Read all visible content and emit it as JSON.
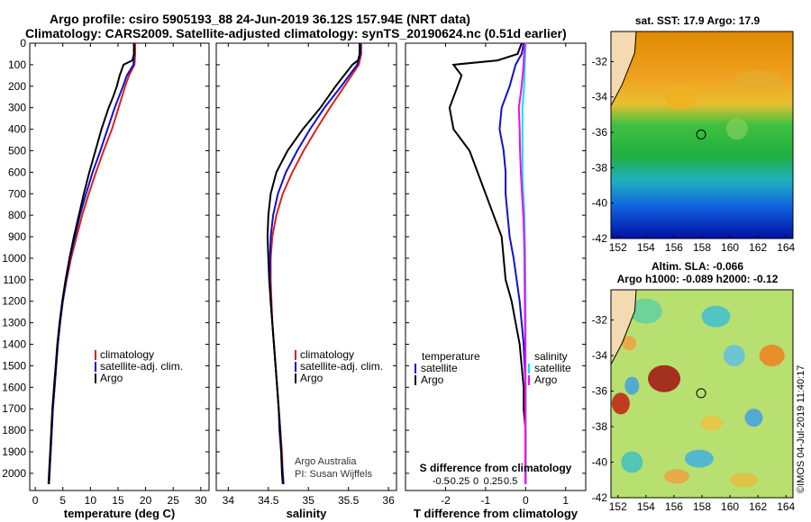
{
  "title": {
    "line1": "Argo profile: csiro 5905193_88 24-Jun-2019 36.12S 157.94E (NRT data)",
    "line2": "Climatology: CARS2009. Satellite-adjusted climatology: synTS_20190624.nc (0.51d earlier)"
  },
  "colors": {
    "climatology": "#e0201a",
    "satellite": "#1010d0",
    "argo": "#000000",
    "sat_salinity": "#00e5e5",
    "argo_salinity": "#ff00ff"
  },
  "chart_data": [
    {
      "id": "temperature",
      "type": "line",
      "xlabel": "temperature (deg C)",
      "ylabel": "",
      "xlim": [
        -1,
        31.5
      ],
      "ylim": [
        2080,
        0
      ],
      "xticks": [
        0,
        5,
        10,
        15,
        20,
        25,
        30
      ],
      "xtick_labels": [
        "0",
        "5",
        "10",
        "15",
        "20",
        "25",
        "30"
      ],
      "yticks": [
        0,
        100,
        200,
        300,
        400,
        500,
        600,
        700,
        800,
        900,
        1000,
        1100,
        1200,
        1300,
        1400,
        1500,
        1600,
        1700,
        1800,
        1900,
        2000
      ],
      "ytick_labels": [
        "0",
        "100",
        "200",
        "300",
        "400",
        "500",
        "600",
        "700",
        "800",
        "900",
        "1000",
        "1100",
        "1200",
        "1300",
        "1400",
        "1500",
        "1600",
        "1700",
        "1800",
        "1900",
        "2000"
      ],
      "legend": [
        {
          "label": "climatology",
          "color": "#e0201a"
        },
        {
          "label": "satellite-adj. clim.",
          "color": "#1010d0"
        },
        {
          "label": "Argo",
          "color": "#000000"
        }
      ],
      "series": [
        {
          "name": "climatology",
          "color": "#e0201a",
          "depth": [
            0,
            50,
            100,
            150,
            200,
            300,
            400,
            500,
            600,
            700,
            800,
            900,
            1000,
            1100,
            1200,
            1300,
            1400,
            1500,
            1600,
            1700,
            1800,
            1900,
            2000,
            2050
          ],
          "values": [
            18.1,
            18.1,
            18.0,
            17.0,
            16.3,
            15.1,
            13.9,
            12.4,
            11.0,
            9.7,
            8.5,
            7.5,
            6.5,
            5.7,
            5.0,
            4.5,
            4.1,
            3.8,
            3.5,
            3.2,
            3.0,
            2.8,
            2.6,
            2.5
          ]
        },
        {
          "name": "satellite-adj. clim.",
          "color": "#1010d0",
          "depth": [
            0,
            50,
            100,
            150,
            200,
            300,
            400,
            500,
            600,
            700,
            800,
            900,
            1000,
            1100,
            1200,
            1300,
            1400,
            1500,
            1600,
            1700,
            1800,
            1900,
            2000,
            2050
          ],
          "values": [
            17.9,
            17.9,
            17.8,
            16.6,
            15.9,
            14.4,
            13.1,
            11.8,
            10.4,
            9.2,
            8.1,
            7.2,
            6.3,
            5.6,
            5.0,
            4.5,
            4.1,
            3.8,
            3.5,
            3.2,
            3.0,
            2.8,
            2.6,
            2.5
          ]
        },
        {
          "name": "Argo",
          "color": "#000000",
          "depth": [
            0,
            50,
            80,
            100,
            150,
            200,
            250,
            300,
            400,
            500,
            600,
            700,
            800,
            900,
            1000,
            1100,
            1200,
            1300,
            1400,
            1500,
            1600,
            1700,
            1800,
            1900,
            2000,
            2050
          ],
          "values": [
            17.9,
            17.9,
            17.6,
            16.0,
            15.3,
            14.8,
            14.1,
            13.3,
            12.0,
            10.9,
            9.8,
            8.8,
            7.9,
            7.0,
            6.2,
            5.5,
            4.9,
            4.4,
            4.0,
            3.7,
            3.4,
            3.1,
            2.9,
            2.7,
            2.5,
            2.4
          ]
        }
      ]
    },
    {
      "id": "salinity",
      "type": "line",
      "xlabel": "salinity",
      "ylabel": "",
      "xlim": [
        33.85,
        36.1
      ],
      "ylim": [
        2080,
        0
      ],
      "xticks": [
        34,
        34.5,
        35,
        35.5,
        36
      ],
      "xtick_labels": [
        "34",
        "34.5",
        "35",
        "35.5",
        "36"
      ],
      "legend": [
        {
          "label": "climatology",
          "color": "#e0201a"
        },
        {
          "label": "satellite-adj. clim.",
          "color": "#1010d0"
        },
        {
          "label": "Argo",
          "color": "#000000"
        }
      ],
      "credit": [
        "Argo Australia",
        "PI: Susan Wijffels"
      ],
      "series": [
        {
          "name": "climatology",
          "color": "#e0201a",
          "depth": [
            0,
            50,
            100,
            200,
            300,
            400,
            500,
            600,
            700,
            800,
            900,
            1000,
            1100,
            1200,
            1300,
            1400,
            1500,
            1600,
            1700,
            1800,
            1900,
            2000,
            2050
          ],
          "values": [
            35.66,
            35.66,
            35.63,
            35.45,
            35.27,
            35.1,
            34.94,
            34.8,
            34.68,
            34.6,
            34.55,
            34.53,
            34.53,
            34.54,
            34.55,
            34.57,
            34.59,
            34.61,
            34.63,
            34.65,
            34.67,
            34.68,
            34.69
          ]
        },
        {
          "name": "satellite-adj. clim.",
          "color": "#1010d0",
          "depth": [
            0,
            50,
            100,
            200,
            300,
            400,
            500,
            600,
            700,
            800,
            900,
            1000,
            1100,
            1200,
            1300,
            1400,
            1500,
            1600,
            1700,
            1800,
            1900,
            2000,
            2050
          ],
          "values": [
            35.65,
            35.65,
            35.61,
            35.41,
            35.2,
            35.02,
            34.86,
            34.72,
            34.62,
            34.56,
            34.53,
            34.52,
            34.52,
            34.53,
            34.55,
            34.57,
            34.59,
            34.61,
            34.63,
            34.65,
            34.66,
            34.68,
            34.69
          ]
        },
        {
          "name": "Argo",
          "color": "#000000",
          "depth": [
            0,
            50,
            80,
            100,
            200,
            300,
            400,
            500,
            600,
            700,
            800,
            900,
            1000,
            1100,
            1200,
            1300,
            1400,
            1500,
            1600,
            1700,
            1800,
            1900,
            2000,
            2050
          ],
          "values": [
            35.64,
            35.64,
            35.62,
            35.55,
            35.34,
            35.15,
            34.93,
            34.74,
            34.6,
            34.53,
            34.5,
            34.49,
            34.5,
            34.51,
            34.53,
            34.55,
            34.57,
            34.59,
            34.61,
            34.63,
            34.64,
            34.66,
            34.67,
            34.68
          ]
        }
      ]
    },
    {
      "id": "difference",
      "type": "line",
      "xlabel": "T difference from climatology",
      "xlabel2": "S difference from climatology",
      "xlim": [
        -3,
        1.5
      ],
      "ylim": [
        2080,
        0
      ],
      "xticks": [
        -2,
        -1,
        0,
        1
      ],
      "xtick_labels": [
        "-2",
        "-1",
        "0",
        "1"
      ],
      "xticks_top": [
        -0.5,
        -0.25,
        0,
        0.25,
        0.5
      ],
      "xtick_labels_top": [
        "-0.5",
        "-0.25",
        "0",
        "0.25",
        "0.5"
      ],
      "legend": [
        {
          "label": "temperature",
          "color": "#000000",
          "group": "T",
          "header": true
        },
        {
          "label": "satellite",
          "color": "#1010d0",
          "group": "T"
        },
        {
          "label": "Argo",
          "color": "#000000",
          "group": "T"
        },
        {
          "label": "salinity",
          "color": "#000000",
          "group": "S",
          "header": true
        },
        {
          "label": "satellite",
          "color": "#00e5e5",
          "group": "S"
        },
        {
          "label": "Argo",
          "color": "#ff00ff",
          "group": "S"
        }
      ],
      "series": [
        {
          "name": "T satellite",
          "color": "#1010d0",
          "depth": [
            0,
            50,
            100,
            200,
            300,
            400,
            500,
            600,
            700,
            800,
            900,
            1000,
            1200,
            1400,
            1600,
            1800,
            2000,
            2050
          ],
          "values": [
            -0.05,
            -0.1,
            -0.25,
            -0.4,
            -0.6,
            -0.65,
            -0.55,
            -0.5,
            -0.5,
            -0.45,
            -0.4,
            -0.3,
            -0.15,
            -0.05,
            0,
            0,
            0,
            0
          ]
        },
        {
          "name": "T Argo",
          "color": "#000000",
          "depth": [
            0,
            50,
            80,
            100,
            150,
            200,
            300,
            400,
            500,
            600,
            700,
            800,
            900,
            1000,
            1100,
            1200,
            1300,
            1400,
            1500,
            1600,
            1700,
            1800,
            1900,
            2000,
            2050
          ],
          "values": [
            -0.1,
            -0.2,
            -0.7,
            -1.8,
            -1.6,
            -1.7,
            -1.9,
            -1.8,
            -1.4,
            -1.2,
            -1.0,
            -0.8,
            -0.6,
            -0.55,
            -0.5,
            -0.35,
            -0.25,
            -0.15,
            -0.1,
            -0.05,
            -0.05,
            0,
            0,
            0,
            0
          ]
        },
        {
          "name": "S satellite",
          "color": "#00e5e5",
          "depth": [
            0,
            50,
            100,
            200,
            300,
            400,
            500,
            600,
            700,
            800,
            900,
            1000,
            1200,
            1400,
            1600,
            1800,
            2000,
            2050
          ],
          "values": [
            0,
            -0.01,
            -0.02,
            -0.04,
            -0.08,
            -0.08,
            -0.08,
            -0.08,
            -0.06,
            -0.03,
            -0.02,
            -0.01,
            0,
            0,
            0,
            0,
            0,
            0
          ]
        },
        {
          "name": "S Argo",
          "color": "#ff00ff",
          "depth": [
            0,
            50,
            100,
            200,
            300,
            400,
            500,
            600,
            700,
            800,
            900,
            1000,
            1200,
            1400,
            1600,
            1800,
            2000,
            2050
          ],
          "values": [
            -0.02,
            -0.04,
            -0.05,
            -0.1,
            -0.17,
            -0.15,
            -0.14,
            -0.12,
            -0.09,
            -0.06,
            -0.04,
            -0.03,
            -0.02,
            -0.01,
            -0.01,
            -0.01,
            -0.01,
            -0.01
          ]
        }
      ]
    },
    {
      "id": "sst_map",
      "type": "heatmap",
      "title": "sat. SST: 17.9 Argo: 17.9",
      "xticks": [
        152,
        154,
        156,
        158,
        160,
        162,
        164
      ],
      "xtick_labels": [
        "152",
        "154",
        "156",
        "158",
        "160",
        "162",
        "164"
      ],
      "yticks": [
        -32,
        -34,
        -36,
        -38,
        -40,
        -42
      ],
      "ytick_labels": [
        "-32",
        "-34",
        "-36",
        "-38",
        "-40",
        "-42"
      ],
      "xlim": [
        151.5,
        164.5
      ],
      "ylim": [
        -42,
        -30.3
      ],
      "argo_position": [
        157.94,
        -36.12
      ]
    },
    {
      "id": "sla_map",
      "type": "heatmap",
      "title": "Altim. SLA: -0.066",
      "subtitle": "Argo h1000: -0.089 h2000: -0.12",
      "xticks": [
        152,
        154,
        156,
        158,
        160,
        162,
        164
      ],
      "xtick_labels": [
        "152",
        "154",
        "156",
        "158",
        "160",
        "162",
        "164"
      ],
      "yticks": [
        -32,
        -34,
        -36,
        -38,
        -40,
        -42
      ],
      "ytick_labels": [
        "-32",
        "-34",
        "-36",
        "-38",
        "-40",
        "-42"
      ],
      "xlim": [
        151.5,
        164.5
      ],
      "ylim": [
        -42,
        -30.3
      ],
      "argo_position": [
        157.94,
        -36.12
      ]
    }
  ],
  "watermark": "©IMOS 04-Jul-2019 11:40:17"
}
